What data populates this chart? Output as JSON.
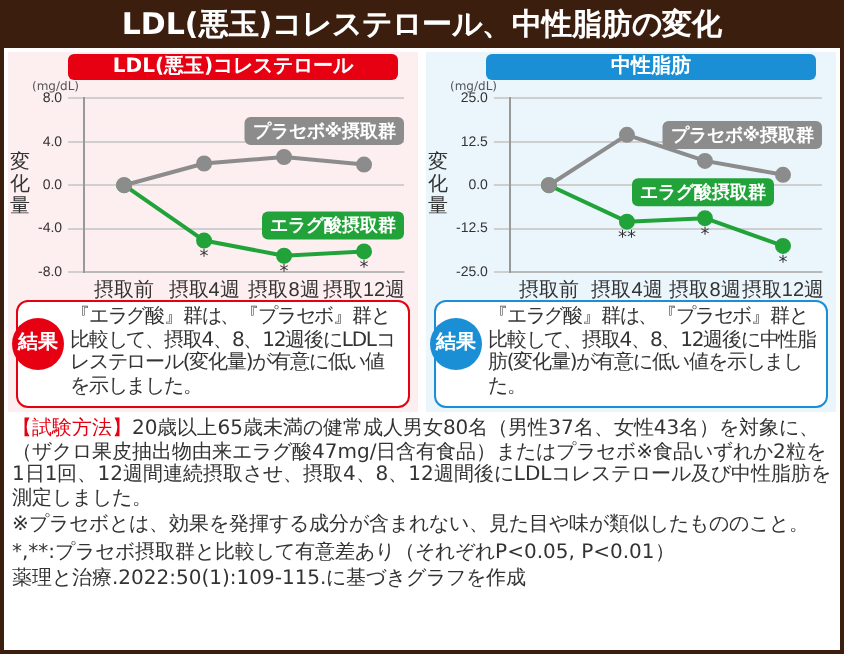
{
  "chart_data": [
    {
      "type": "line",
      "title": "LDL(悪玉)コレステロール",
      "ylabel": "変化量",
      "categories": [
        "摂取前",
        "摂取4週",
        "摂取8週",
        "摂取12週"
      ],
      "series": [
        {
          "name": "プラセボ※摂取群",
          "color": "#8c8c8c",
          "values": [
            0,
            2.0,
            2.6,
            1.9
          ]
        },
        {
          "name": "エラグ酸摂取群",
          "color": "#22a33a",
          "values": [
            0,
            -5.1,
            -6.5,
            -6.1
          ]
        }
      ],
      "ylim": [
        -8,
        8
      ],
      "yticks": [
        {
          "value": -8,
          "label": "-8.0"
        },
        {
          "value": -4,
          "label": "-4.0"
        },
        {
          "value": 0,
          "label": "0.0"
        },
        {
          "value": 4,
          "label": "4.0"
        },
        {
          "value": 8,
          "label": "8.0"
        }
      ],
      "grid": "y",
      "legend": false,
      "marker": "circle",
      "line_style": "solid",
      "annotations": [
        "(mg/dL)",
        "結果",
        "『エラグ酸』群は、『プラセボ』群と比較して、摂取4、8、12週後にLDLコレステロール(変化量)が有意に低い値を示しました。",
        {
          "text": "*",
          "x": "摂取4週",
          "y": -5.1
        },
        {
          "text": "*",
          "x": "摂取8週",
          "y": -6.5
        },
        {
          "text": "*",
          "x": "摂取12週",
          "y": -6.1
        }
      ]
    },
    {
      "type": "line",
      "title": "中性脂肪",
      "ylabel": "変化量",
      "categories": [
        "摂取前",
        "摂取4週",
        "摂取8週",
        "摂取12週"
      ],
      "series": [
        {
          "name": "プラセボ※摂取群",
          "color": "#8c8c8c",
          "values": [
            0,
            14.5,
            7,
            3
          ]
        },
        {
          "name": "エラグ酸摂取群",
          "color": "#22a33a",
          "values": [
            0,
            -10.5,
            -9.5,
            -17.5
          ]
        }
      ],
      "ylim": [
        -25,
        25
      ],
      "yticks": [
        {
          "value": -25,
          "label": "-25.0"
        },
        {
          "value": -12.5,
          "label": "-12.5"
        },
        {
          "value": 0,
          "label": "0.0"
        },
        {
          "value": 12.5,
          "label": "12.5"
        },
        {
          "value": 25,
          "label": "25.0"
        }
      ],
      "grid": "y",
      "legend": false,
      "marker": "circle",
      "line_style": "solid",
      "annotations": [
        "(mg/dL)",
        "結果",
        "『エラグ酸』群は、『プラセボ』群と比較して、摂取4、8、12週後に中性脂肪(変化量)が有意に低い値を示しました。",
        {
          "text": "**",
          "x": "摂取4週",
          "y": -10.5
        },
        {
          "text": "*",
          "x": "摂取8週",
          "y": -9.5
        },
        {
          "text": "*",
          "x": "摂取12週",
          "y": -17.5
        }
      ]
    },
    {
      "type": "other",
      "title": "LDL(悪玉)コレステロール、中性脂肪の変化",
      "annotations": [
        "【試験方法】",
        "20歳以上65歳未満の健常成人男女80名（男性37名、女性43名）を対象に、（ザクロ果皮抽出物由来エラグ酸47mg/日含有食品）またはプラセボ※食品いずれか2粒を1日1回、12週間連続摂取させ、摂取4、8、12週間後にLDLコレステロール及び中性脂肪を測定しました。",
        "※プラセボとは、効果を発揮する成分が含まれない、見た目や味が類似したもののこと。",
        "*,**:プラセボ摂取群と比較して有意差あり（それぞれP<0.05, P<0.01）",
        "薬理と治療.2022:50(1):109-115.に基づきグラフを作成"
      ]
    }
  ]
}
